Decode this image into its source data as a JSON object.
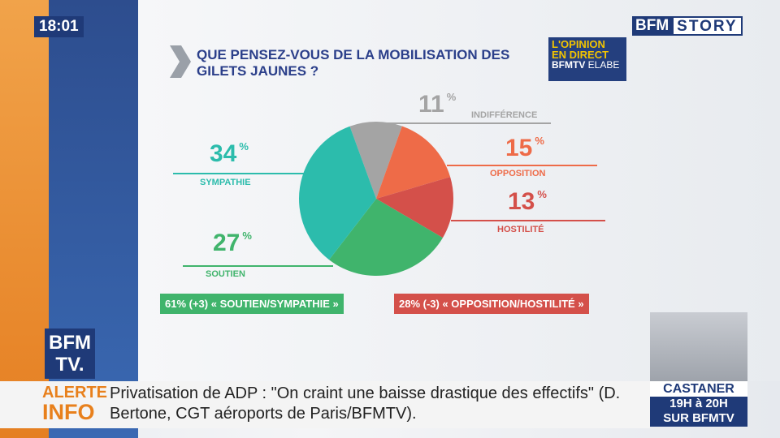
{
  "clock": "18:01",
  "channel_logo": {
    "brand": "BFM",
    "program": "STORY"
  },
  "poll_badge": {
    "line1": "L'OPINION",
    "line2": "EN DIRECT",
    "line3": "BFMTV",
    "line4": "ELABE"
  },
  "chart_data": {
    "type": "pie",
    "title": "QUE PENSEZ-VOUS DE LA MOBILISATION DES GILETS JAUNES ?",
    "unit": "%",
    "categories": [
      "INDIFFÉRENCE",
      "OPPOSITION",
      "HOSTILITÉ",
      "SOUTIEN",
      "SYMPATHIE"
    ],
    "values": [
      11,
      15,
      13,
      27,
      34
    ],
    "colors": [
      "#a4a4a4",
      "#ee6b48",
      "#d4504a",
      "#40b46c",
      "#2cbcac"
    ],
    "summary": [
      "61% (+3) « SOUTIEN/SYMPATHIE »",
      "28% (-3) « OPPOSITION/HOSTILITÉ »"
    ]
  },
  "side_logo": {
    "line1": "BFM",
    "line2": "TV."
  },
  "ticker": {
    "label1": "ALERTE",
    "label2": "INFO",
    "text": "Privatisation de ADP : \"On craint une baisse drastique des effectifs\" (D. Bertone, CGT aéroports de Paris/BFMTV)."
  },
  "promo": {
    "name": "CASTANER",
    "time": "19H à 20H",
    "channel": "SUR BFMTV"
  }
}
